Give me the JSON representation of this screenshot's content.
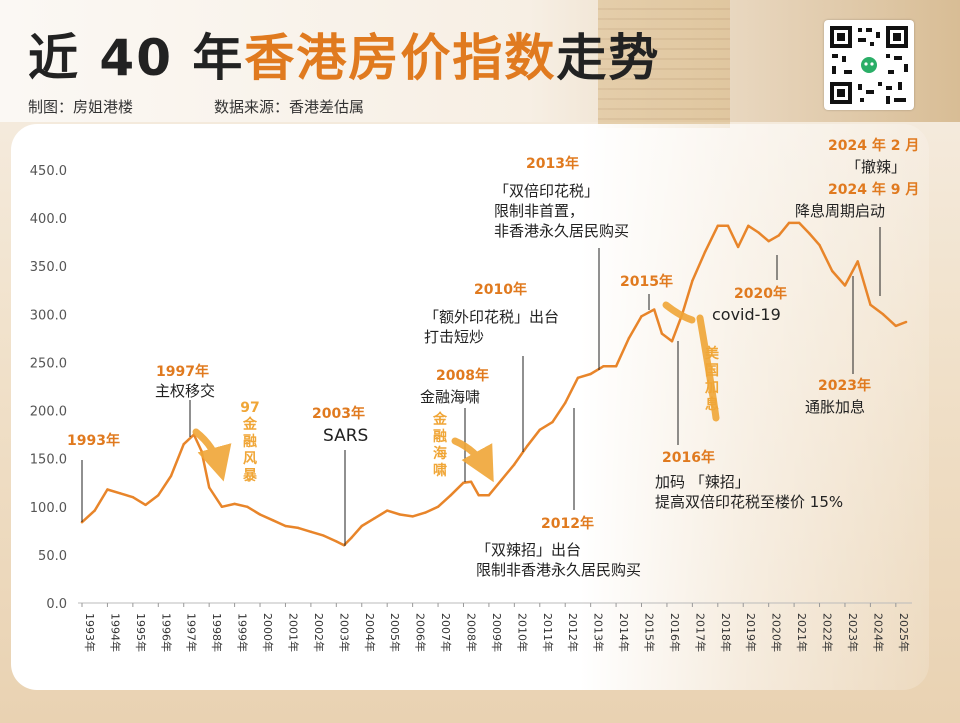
{
  "header": {
    "title_prefix": "近 40 年",
    "title_highlight": "香港房价指数",
    "title_suffix": "走势",
    "credit": "制图：房姐港楼",
    "source": "数据来源：香港差估属"
  },
  "colors": {
    "line": "#e8852a",
    "accent": "#e07a1f",
    "event_text": "#f0a637",
    "text": "#222222"
  },
  "chart_data": {
    "type": "line",
    "title": "近 40 年香港房价指数走势",
    "xlabel": "",
    "ylabel": "",
    "ylim": [
      0,
      450
    ],
    "yticks": [
      "0.0",
      "50.0",
      "100.0",
      "150.0",
      "200.0",
      "250.0",
      "300.0",
      "350.0",
      "400.0",
      "450.0"
    ],
    "xticks": [
      "1993年",
      "1994年",
      "1995年",
      "1996年",
      "1997年",
      "1998年",
      "1999年",
      "2000年",
      "2001年",
      "2002年",
      "2003年",
      "2004年",
      "2005年",
      "2006年",
      "2007年",
      "2008年",
      "2009年",
      "2010年",
      "2011年",
      "2012年",
      "2013年",
      "2014年",
      "2015年",
      "2016年",
      "2017年",
      "2018年",
      "2019年",
      "2020年",
      "2021年",
      "2022年",
      "2023年",
      "2024年",
      "2025年"
    ],
    "grid": false,
    "legend": "none",
    "series": [
      {
        "x": [
          1993.0,
          1993.5,
          1994.0,
          1994.5,
          1995.0,
          1995.5,
          1996.0,
          1996.5,
          1997.0,
          1997.4,
          1997.7,
          1998.0,
          1998.5,
          1999.0,
          1999.5,
          2000.0,
          2000.5,
          2001.0,
          2001.5,
          2002.0,
          2002.5,
          2003.0,
          2003.3,
          2003.6,
          2004.0,
          2004.5,
          2005.0,
          2005.5,
          2006.0,
          2006.5,
          2007.0,
          2007.5,
          2008.0,
          2008.3,
          2008.6,
          2009.0,
          2009.5,
          2010.0,
          2010.5,
          2011.0,
          2011.5,
          2012.0,
          2012.5,
          2013.0,
          2013.5,
          2014.0,
          2014.5,
          2015.0,
          2015.5,
          2015.8,
          2016.2,
          2016.6,
          2017.0,
          2017.5,
          2018.0,
          2018.4,
          2018.8,
          2019.2,
          2019.6,
          2020.0,
          2020.4,
          2020.8,
          2021.2,
          2021.6,
          2022.0,
          2022.5,
          2023.0,
          2023.5,
          2024.0,
          2024.5,
          2025.0,
          2025.4
        ],
        "y": [
          84,
          96,
          118,
          114,
          110,
          102,
          112,
          132,
          165,
          175,
          158,
          120,
          100,
          103,
          100,
          92,
          86,
          80,
          78,
          74,
          70,
          64,
          60,
          68,
          80,
          88,
          96,
          92,
          90,
          94,
          100,
          112,
          125,
          126,
          112,
          112,
          128,
          144,
          163,
          180,
          188,
          208,
          234,
          238,
          246,
          246,
          275,
          298,
          305,
          280,
          272,
          300,
          335,
          365,
          392,
          392,
          370,
          392,
          385,
          376,
          382,
          395,
          395,
          384,
          372,
          345,
          330,
          355,
          310,
          300,
          288,
          292
        ]
      }
    ],
    "annotations": [
      {
        "year": "1993年",
        "text": ""
      },
      {
        "year": "1997年",
        "text": "主权移交"
      },
      {
        "year": "2003年",
        "text": "SARS"
      },
      {
        "year": "2008年",
        "text": "金融海啸"
      },
      {
        "year": "2010年",
        "text": "「额外印花税」出台\n打击短炒"
      },
      {
        "year": "2012年",
        "text": "「双辣招」出台\n限制非香港永久居民购买"
      },
      {
        "year": "2013年",
        "text": "「双倍印花税」\n限制非首置，\n非香港永久居民购买"
      },
      {
        "year": "2015年",
        "text": ""
      },
      {
        "year": "2016年",
        "text": "加码 「辣招」\n提高双倍印花税至楼价 15%"
      },
      {
        "year": "2020年",
        "text": "covid-19"
      },
      {
        "year": "2023年",
        "text": "通胀加息"
      },
      {
        "year": "2024 年 2 月",
        "text": "「撤辣」"
      },
      {
        "year": "2024 年 9 月",
        "text": "降息周期启动"
      }
    ],
    "event_labels": [
      "97金融风暴",
      "金融海啸",
      "美国加息"
    ]
  }
}
